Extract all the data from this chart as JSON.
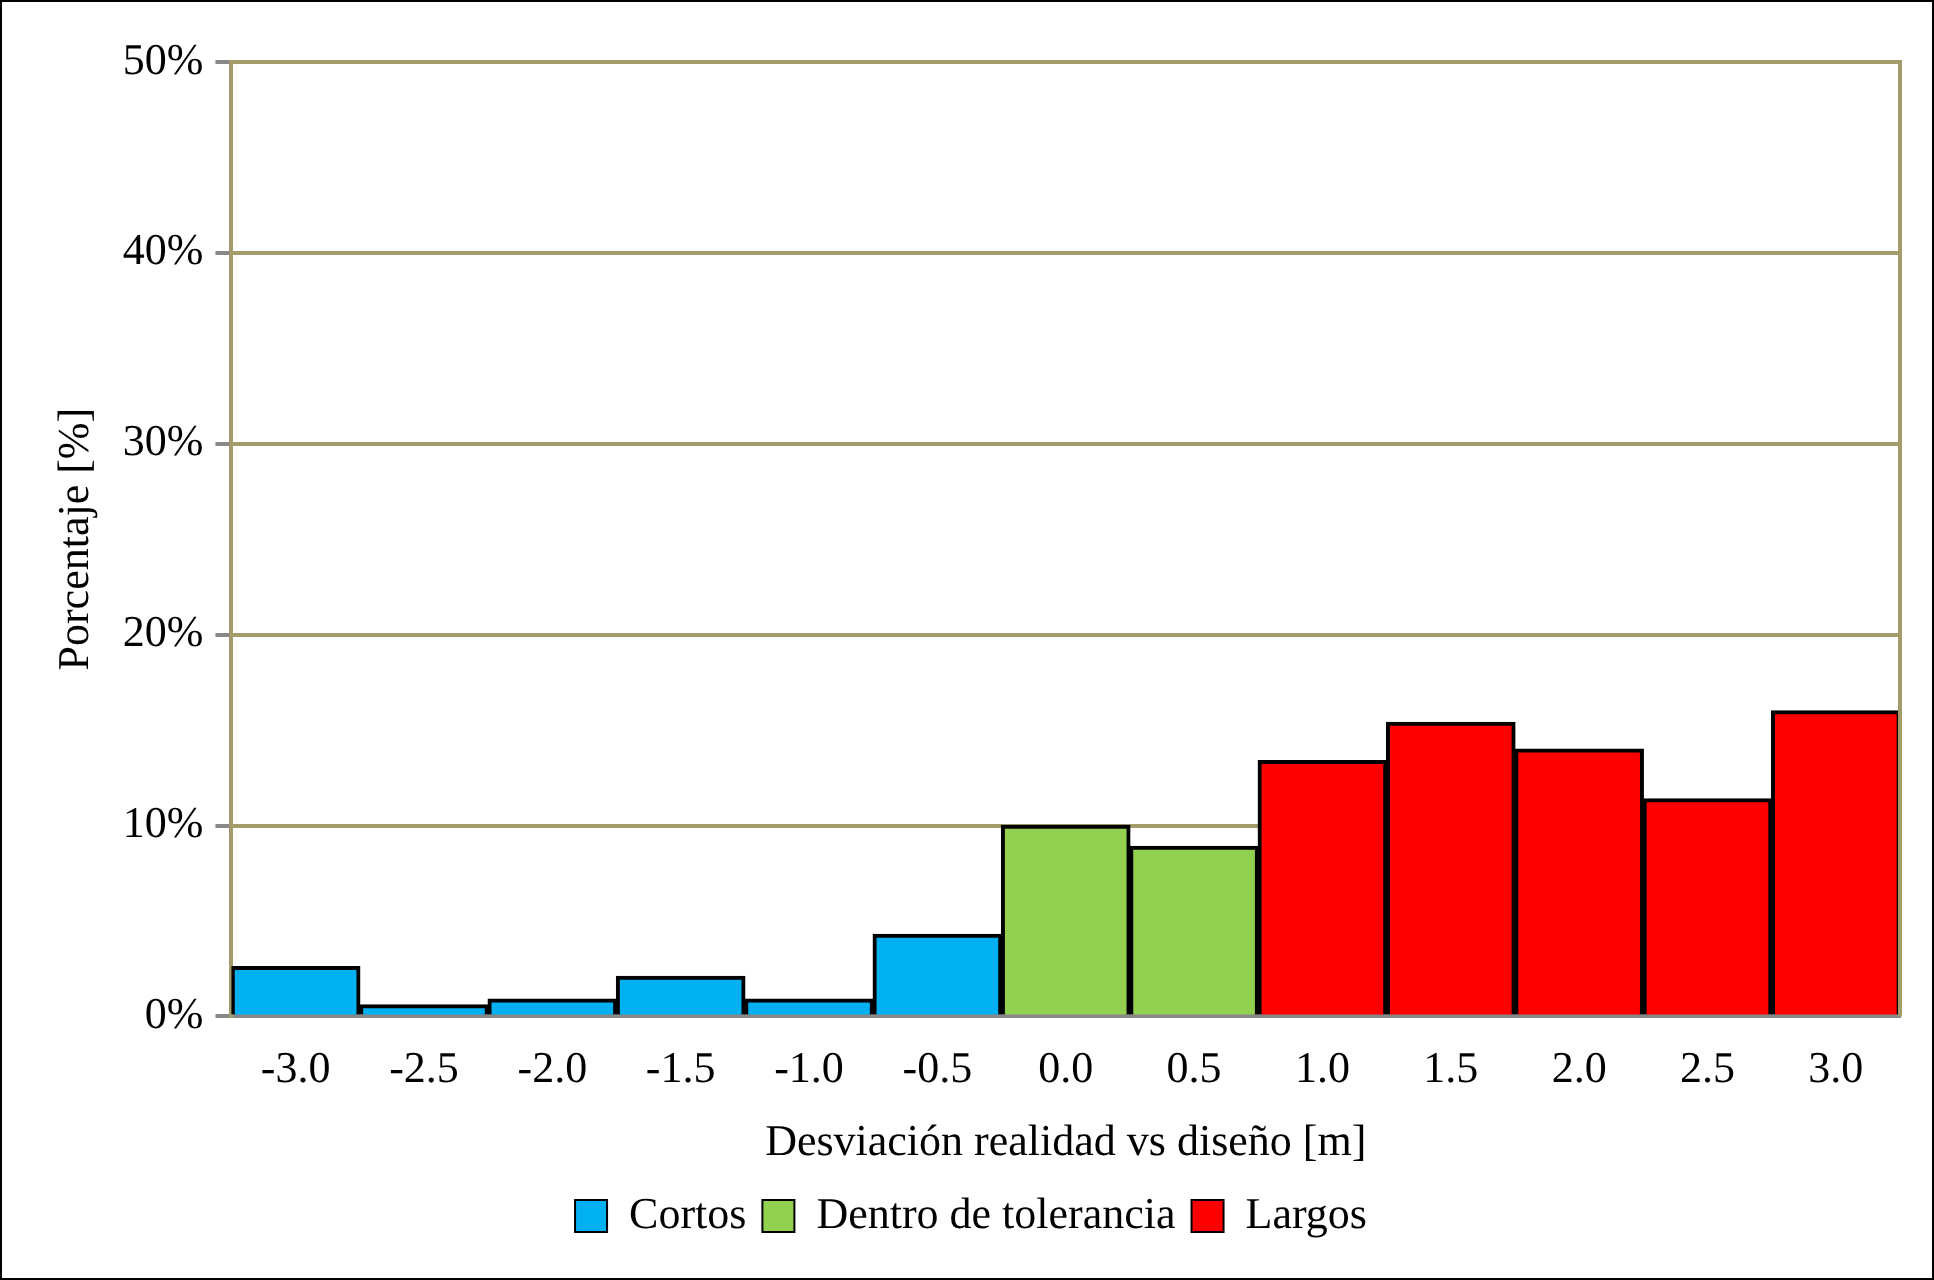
{
  "chart_data": {
    "type": "bar",
    "xlabel": "Desviación realidad vs diseño [m]",
    "ylabel": "Porcentaje [%]",
    "categories": [
      "-3.0",
      "-2.5",
      "-2.0",
      "-1.5",
      "-1.0",
      "-0.5",
      "0.0",
      "0.5",
      "1.0",
      "1.5",
      "2.0",
      "2.5",
      "3.0"
    ],
    "series": [
      {
        "name": "Cortos",
        "color": "#00b0f0",
        "values": [
          2.6,
          0.6,
          0.9,
          2.1,
          0.9,
          4.3,
          null,
          null,
          null,
          null,
          null,
          null,
          null
        ]
      },
      {
        "name": "Dentro de tolerancia",
        "color": "#92d050",
        "values": [
          null,
          null,
          null,
          null,
          null,
          null,
          10.0,
          8.9,
          null,
          null,
          null,
          null,
          null
        ]
      },
      {
        "name": "Largos",
        "color": "#ff0000",
        "values": [
          null,
          null,
          null,
          null,
          null,
          null,
          null,
          null,
          13.4,
          15.4,
          14.0,
          11.4,
          16.0
        ]
      }
    ],
    "stacked": true,
    "ylim": [
      0,
      50
    ],
    "yticks": [
      {
        "value": 0,
        "label": "0%"
      },
      {
        "value": 10,
        "label": "10%"
      },
      {
        "value": 20,
        "label": "20%"
      },
      {
        "value": 30,
        "label": "30%"
      },
      {
        "value": 40,
        "label": "40%"
      },
      {
        "value": 50,
        "label": "50%"
      }
    ],
    "grid": "y",
    "legend": "bottom"
  }
}
